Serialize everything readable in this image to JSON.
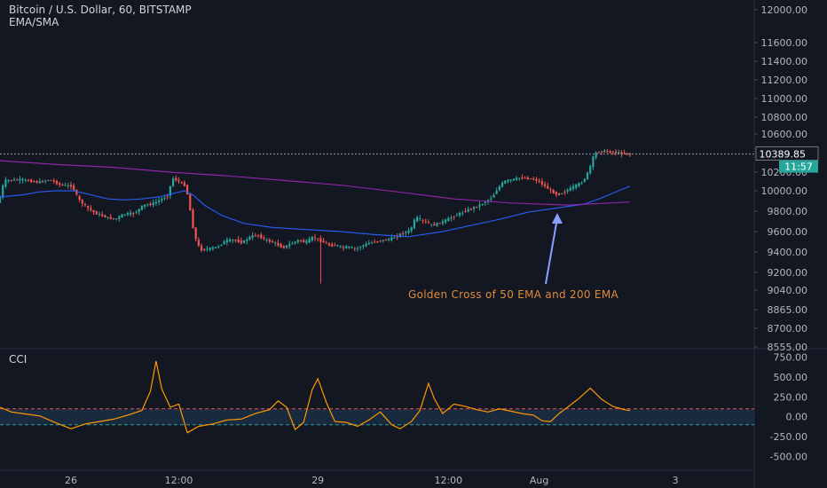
{
  "header": {
    "title": "Bitcoin / U.S. Dollar, 60, BITSTAMP",
    "indicator": "EMA/SMA",
    "lower_indicator": "CCI"
  },
  "colors": {
    "background": "#131722",
    "up": "#26a69a",
    "down": "#ef5350",
    "ema50": "#2962ff",
    "ema200": "#9c27b0",
    "cci": "#ff9800",
    "annotation": "#e08a3a",
    "arrow": "#8c9eff",
    "price_tag": "#26a69a"
  },
  "chart_data": [
    {
      "type": "candlestick",
      "title": "Bitcoin / U.S. Dollar, 60, BITSTAMP",
      "x_ticks": [
        "26",
        "12:00",
        "29",
        "12:00",
        "Aug",
        "3"
      ],
      "y_ticks": [
        "12000.00",
        "11600.00",
        "11400.00",
        "11200.00",
        "11000.00",
        "10800.00",
        "10600.00",
        "10200.00",
        "10000.00",
        "9800.00",
        "9600.00",
        "9400.00",
        "9200.00",
        "9040.00",
        "8865.00",
        "8700.00",
        "8555.00"
      ],
      "last_price": "10389.85",
      "countdown": "11:57",
      "annotation": "Golden Cross of 50 EMA and 200 EMA",
      "price_path": [
        [
          0,
          9880
        ],
        [
          2,
          10110
        ],
        [
          8,
          10120
        ],
        [
          14,
          10090
        ],
        [
          18,
          10120
        ],
        [
          22,
          10060
        ],
        [
          26,
          10050
        ],
        [
          28,
          9920
        ],
        [
          31,
          9840
        ],
        [
          34,
          9780
        ],
        [
          38,
          9740
        ],
        [
          41,
          9720
        ],
        [
          44,
          9770
        ],
        [
          48,
          9780
        ],
        [
          51,
          9860
        ],
        [
          54,
          9870
        ],
        [
          57,
          9910
        ],
        [
          60,
          9960
        ],
        [
          61,
          10140
        ],
        [
          63,
          10110
        ],
        [
          66,
          10050
        ],
        [
          69,
          9560
        ],
        [
          71,
          9420
        ],
        [
          74,
          9430
        ],
        [
          77,
          9450
        ],
        [
          80,
          9510
        ],
        [
          83,
          9520
        ],
        [
          86,
          9490
        ],
        [
          88,
          9540
        ],
        [
          91,
          9570
        ],
        [
          94,
          9520
        ],
        [
          98,
          9480
        ],
        [
          100,
          9440
        ],
        [
          103,
          9480
        ],
        [
          106,
          9520
        ],
        [
          108,
          9490
        ],
        [
          111,
          9550
        ],
        [
          114,
          9500
        ],
        [
          117,
          9460
        ],
        [
          119,
          9470
        ],
        [
          121,
          9440
        ],
        [
          123,
          9450
        ],
        [
          126,
          9430
        ],
        [
          128,
          9460
        ],
        [
          131,
          9490
        ],
        [
          134,
          9510
        ],
        [
          137,
          9520
        ],
        [
          140,
          9550
        ],
        [
          142,
          9580
        ],
        [
          145,
          9610
        ],
        [
          147,
          9740
        ],
        [
          150,
          9700
        ],
        [
          153,
          9660
        ],
        [
          156,
          9690
        ],
        [
          159,
          9730
        ],
        [
          162,
          9770
        ],
        [
          165,
          9810
        ],
        [
          168,
          9840
        ],
        [
          171,
          9880
        ],
        [
          174,
          9940
        ],
        [
          176,
          10030
        ],
        [
          178,
          10100
        ],
        [
          181,
          10120
        ],
        [
          184,
          10140
        ],
        [
          187,
          10130
        ],
        [
          190,
          10110
        ],
        [
          192,
          10060
        ],
        [
          195,
          9990
        ],
        [
          197,
          9960
        ],
        [
          200,
          10000
        ],
        [
          203,
          10050
        ],
        [
          206,
          10100
        ],
        [
          208,
          10220
        ],
        [
          210,
          10400
        ],
        [
          213,
          10420
        ],
        [
          216,
          10410
        ],
        [
          219,
          10400
        ],
        [
          222,
          10390
        ]
      ],
      "series": [
        {
          "name": "50 EMA",
          "points": [
            [
              0,
              9940
            ],
            [
              8,
              9960
            ],
            [
              14,
              9990
            ],
            [
              20,
              10000
            ],
            [
              26,
              10000
            ],
            [
              32,
              9960
            ],
            [
              38,
              9920
            ],
            [
              44,
              9910
            ],
            [
              50,
              9920
            ],
            [
              56,
              9940
            ],
            [
              62,
              9980
            ],
            [
              65,
              10000
            ],
            [
              68,
              9960
            ],
            [
              72,
              9860
            ],
            [
              78,
              9760
            ],
            [
              86,
              9680
            ],
            [
              96,
              9640
            ],
            [
              108,
              9620
            ],
            [
              120,
              9600
            ],
            [
              132,
              9570
            ],
            [
              144,
              9550
            ],
            [
              156,
              9600
            ],
            [
              166,
              9660
            ],
            [
              176,
              9720
            ],
            [
              186,
              9790
            ],
            [
              196,
              9830
            ],
            [
              206,
              9870
            ],
            [
              212,
              9930
            ],
            [
              218,
              10000
            ],
            [
              222,
              10050
            ]
          ]
        },
        {
          "name": "200 EMA",
          "points": [
            [
              0,
              10320
            ],
            [
              20,
              10280
            ],
            [
              40,
              10250
            ],
            [
              60,
              10200
            ],
            [
              80,
              10160
            ],
            [
              100,
              10110
            ],
            [
              120,
              10060
            ],
            [
              140,
              9990
            ],
            [
              160,
              9920
            ],
            [
              180,
              9880
            ],
            [
              200,
              9860
            ],
            [
              222,
              9890
            ]
          ]
        }
      ]
    },
    {
      "type": "line",
      "title": "CCI",
      "y_ticks": [
        "750.00",
        "500.00",
        "250.00",
        "0.00",
        "-250.00",
        "-500.00"
      ],
      "ylim": [
        -650,
        800
      ],
      "levels": [
        100,
        -100
      ],
      "values": [
        [
          0,
          120
        ],
        [
          4,
          60
        ],
        [
          8,
          40
        ],
        [
          14,
          10
        ],
        [
          20,
          -80
        ],
        [
          25,
          -150
        ],
        [
          30,
          -90
        ],
        [
          35,
          -60
        ],
        [
          40,
          -30
        ],
        [
          45,
          20
        ],
        [
          50,
          80
        ],
        [
          53,
          320
        ],
        [
          55,
          700
        ],
        [
          57,
          350
        ],
        [
          60,
          120
        ],
        [
          63,
          160
        ],
        [
          66,
          -200
        ],
        [
          70,
          -120
        ],
        [
          75,
          -90
        ],
        [
          80,
          -40
        ],
        [
          85,
          -30
        ],
        [
          90,
          40
        ],
        [
          95,
          90
        ],
        [
          98,
          200
        ],
        [
          101,
          120
        ],
        [
          104,
          -160
        ],
        [
          107,
          -70
        ],
        [
          110,
          340
        ],
        [
          112,
          480
        ],
        [
          115,
          180
        ],
        [
          118,
          -60
        ],
        [
          122,
          -70
        ],
        [
          126,
          -120
        ],
        [
          130,
          -40
        ],
        [
          134,
          60
        ],
        [
          138,
          -100
        ],
        [
          141,
          -150
        ],
        [
          145,
          -60
        ],
        [
          148,
          80
        ],
        [
          151,
          420
        ],
        [
          153,
          230
        ],
        [
          156,
          40
        ],
        [
          160,
          160
        ],
        [
          164,
          130
        ],
        [
          168,
          90
        ],
        [
          172,
          60
        ],
        [
          176,
          100
        ],
        [
          180,
          70
        ],
        [
          184,
          40
        ],
        [
          188,
          20
        ],
        [
          191,
          -50
        ],
        [
          194,
          -60
        ],
        [
          197,
          40
        ],
        [
          200,
          120
        ],
        [
          204,
          230
        ],
        [
          208,
          360
        ],
        [
          212,
          220
        ],
        [
          216,
          130
        ],
        [
          220,
          90
        ],
        [
          222,
          80
        ]
      ]
    }
  ]
}
